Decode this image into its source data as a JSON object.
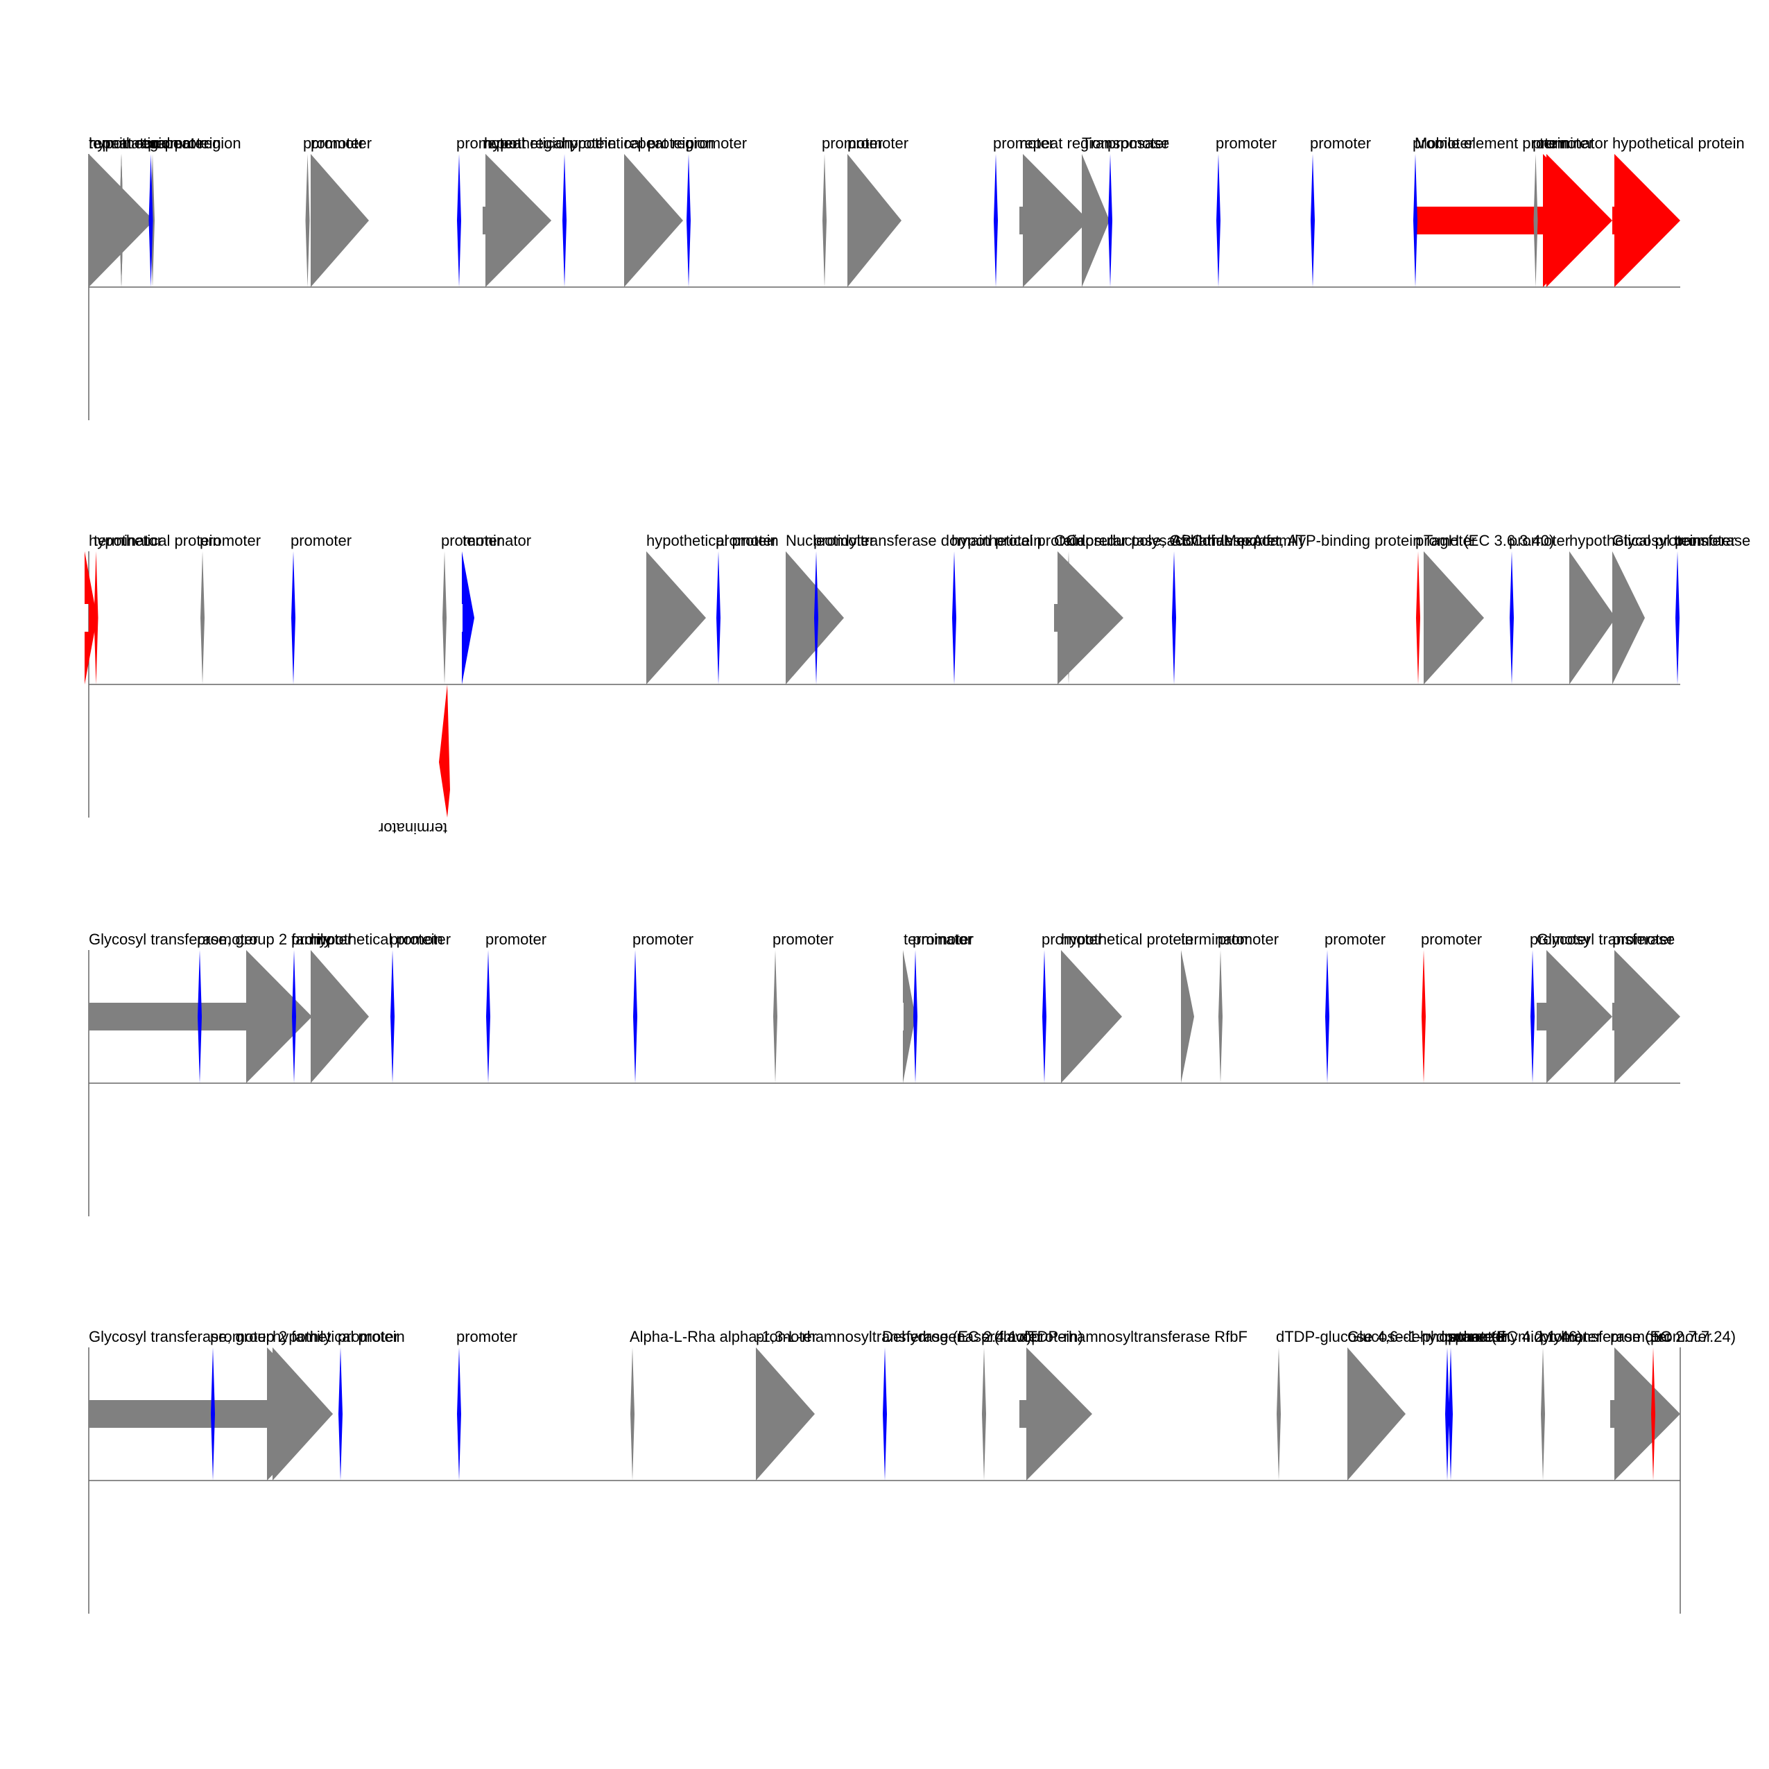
{
  "colors": {
    "gray": "#808080",
    "red": "#ff0000",
    "blue": "#0000ff",
    "axis": "#666666",
    "text": "#000000"
  },
  "tracks": [
    {
      "features": [
        {
          "label": "hypothetical protein",
          "color": "gray",
          "kind": "gene"
        },
        {
          "label": "repeat region",
          "color": "gray",
          "kind": "tick"
        },
        {
          "label": "terminator",
          "color": "gray",
          "kind": "tick"
        },
        {
          "label": "promoter",
          "color": "blue",
          "kind": "tick"
        },
        {
          "label": "repeat region",
          "color": "gray",
          "kind": "tick"
        },
        {
          "label": "promoter",
          "color": "gray",
          "kind": "tick"
        },
        {
          "label": "promoter",
          "color": "gray",
          "kind": "gene"
        },
        {
          "label": "promoter",
          "color": "blue",
          "kind": "tick"
        },
        {
          "label": "repeat region",
          "color": "gray",
          "kind": "gene"
        },
        {
          "label": "hypothetical protein",
          "color": "gray",
          "kind": "gene"
        },
        {
          "label": "hypothetical protein",
          "color": "blue",
          "kind": "tick"
        },
        {
          "label": "repeat region",
          "color": "gray",
          "kind": "gene"
        },
        {
          "label": "promoter",
          "color": "blue",
          "kind": "tick"
        },
        {
          "label": "promoter",
          "color": "gray",
          "kind": "tick"
        },
        {
          "label": "promoter",
          "color": "gray",
          "kind": "gene"
        },
        {
          "label": "promoter",
          "color": "blue",
          "kind": "tick"
        },
        {
          "label": "repeat region",
          "color": "gray",
          "kind": "gene"
        },
        {
          "label": "promoter",
          "color": "blue",
          "kind": "tick"
        },
        {
          "label": "Transposase",
          "color": "gray",
          "kind": "gene"
        },
        {
          "label": "promoter",
          "color": "blue",
          "kind": "tick"
        },
        {
          "label": "promoter",
          "color": "blue",
          "kind": "tick"
        },
        {
          "label": "promoter",
          "color": "blue",
          "kind": "tick"
        },
        {
          "label": "Mobile element protein",
          "color": "red",
          "kind": "gene"
        },
        {
          "label": "promoter",
          "color": "gray",
          "kind": "tick"
        },
        {
          "label": "terminator",
          "color": "red",
          "kind": "gene"
        },
        {
          "label": "hypothetical protein",
          "color": "red",
          "kind": "gene"
        }
      ],
      "below": []
    },
    {
      "features": [
        {
          "label": "hypothetical protein",
          "color": "red",
          "kind": "gene"
        },
        {
          "label": "terminator",
          "color": "red",
          "kind": "tick"
        },
        {
          "label": "promoter",
          "color": "gray",
          "kind": "tick"
        },
        {
          "label": "promoter",
          "color": "blue",
          "kind": "tick"
        },
        {
          "label": "promoter",
          "color": "gray",
          "kind": "tick"
        },
        {
          "label": "terminator",
          "color": "blue",
          "kind": "gene"
        },
        {
          "label": "hypothetical protein",
          "color": "gray",
          "kind": "gene"
        },
        {
          "label": "promoter",
          "color": "blue",
          "kind": "tick"
        },
        {
          "label": "Nucleotidyltransferase domain protein",
          "color": "gray",
          "kind": "gene"
        },
        {
          "label": "promoter",
          "color": "blue",
          "kind": "tick"
        },
        {
          "label": "Oxidoreductase, Gfo/Idh/MocA family",
          "color": "gray",
          "kind": "gene"
        },
        {
          "label": "hypothetical protein",
          "color": "blue",
          "kind": "tick"
        },
        {
          "label": "Capsular polysaccharide export",
          "color": "gray",
          "kind": "tick"
        },
        {
          "label": "ABC transporter, ATP-binding protein",
          "color": "blue",
          "kind": "tick"
        },
        {
          "label": "promoter",
          "color": "red",
          "kind": "tick"
        },
        {
          "label": "TagH (EC 3.6.3.40)",
          "color": "gray",
          "kind": "gene"
        },
        {
          "label": "promoter",
          "color": "blue",
          "kind": "tick"
        },
        {
          "label": "hypothetical protein",
          "color": "gray",
          "kind": "gene"
        },
        {
          "label": "Glycosyl transferase",
          "color": "gray",
          "kind": "gene"
        },
        {
          "label": "promoter",
          "color": "blue",
          "kind": "tick"
        }
      ],
      "below": [
        {
          "label": "terminator",
          "color": "red"
        }
      ]
    },
    {
      "features": [
        {
          "label": "Glycosyl transferase, group 2 family",
          "color": "gray",
          "kind": "gene"
        },
        {
          "label": "promoter",
          "color": "blue",
          "kind": "tick"
        },
        {
          "label": "promoter",
          "color": "blue",
          "kind": "tick"
        },
        {
          "label": "hypothetical protein",
          "color": "gray",
          "kind": "gene"
        },
        {
          "label": "promoter",
          "color": "blue",
          "kind": "tick"
        },
        {
          "label": "promoter",
          "color": "blue",
          "kind": "tick"
        },
        {
          "label": "promoter",
          "color": "blue",
          "kind": "tick"
        },
        {
          "label": "promoter",
          "color": "gray",
          "kind": "tick"
        },
        {
          "label": "terminator",
          "color": "gray",
          "kind": "gene"
        },
        {
          "label": "promoter",
          "color": "blue",
          "kind": "tick"
        },
        {
          "label": "promoter",
          "color": "blue",
          "kind": "tick"
        },
        {
          "label": "hypothetical protein",
          "color": "gray",
          "kind": "gene"
        },
        {
          "label": "terminator",
          "color": "gray",
          "kind": "gene"
        },
        {
          "label": "promoter",
          "color": "gray",
          "kind": "tick"
        },
        {
          "label": "promoter",
          "color": "blue",
          "kind": "tick"
        },
        {
          "label": "promoter",
          "color": "red",
          "kind": "tick"
        },
        {
          "label": "promoter",
          "color": "blue",
          "kind": "tick"
        },
        {
          "label": "Glycosyl transferase",
          "color": "gray",
          "kind": "gene"
        },
        {
          "label": "promoter",
          "color": "gray",
          "kind": "gene"
        }
      ],
      "below": []
    },
    {
      "features": [
        {
          "label": "Glycosyl transferase, group 2 family",
          "color": "gray",
          "kind": "gene"
        },
        {
          "label": "promoter",
          "color": "blue",
          "kind": "tick"
        },
        {
          "label": "promoter",
          "color": "blue",
          "kind": "tick"
        },
        {
          "label": "hypothetical protein",
          "color": "gray",
          "kind": "gene"
        },
        {
          "label": "promoter",
          "color": "blue",
          "kind": "tick"
        },
        {
          "label": "Alpha-L-Rha alpha-1,3-L-rhamnosyltransferase (EC 2.4.1.-)",
          "color": "gray",
          "kind": "tick"
        },
        {
          "label": "promoter",
          "color": "gray",
          "kind": "gene"
        },
        {
          "label": "Dehydrogenase (flavoprotein)",
          "color": "blue",
          "kind": "tick"
        },
        {
          "label": "promoter",
          "color": "gray",
          "kind": "tick"
        },
        {
          "label": "dTDP-rhamnosyltransferase RfbF",
          "color": "gray",
          "kind": "gene"
        },
        {
          "label": "dTDP-glucose 4,6-dehydratase (EC 4.2.1.46)",
          "color": "gray",
          "kind": "tick"
        },
        {
          "label": "promoter",
          "color": "blue",
          "kind": "tick"
        },
        {
          "label": "Glucose-1-phosphate thymidylyltransferase (EC 2.7.7.24)",
          "color": "gray",
          "kind": "gene"
        },
        {
          "label": "promoter",
          "color": "blue",
          "kind": "tick"
        },
        {
          "label": "promoter",
          "color": "gray",
          "kind": "tick"
        },
        {
          "label": "promoter",
          "color": "gray",
          "kind": "gene"
        },
        {
          "label": "promoter",
          "color": "red",
          "kind": "tick"
        }
      ],
      "below": []
    }
  ]
}
